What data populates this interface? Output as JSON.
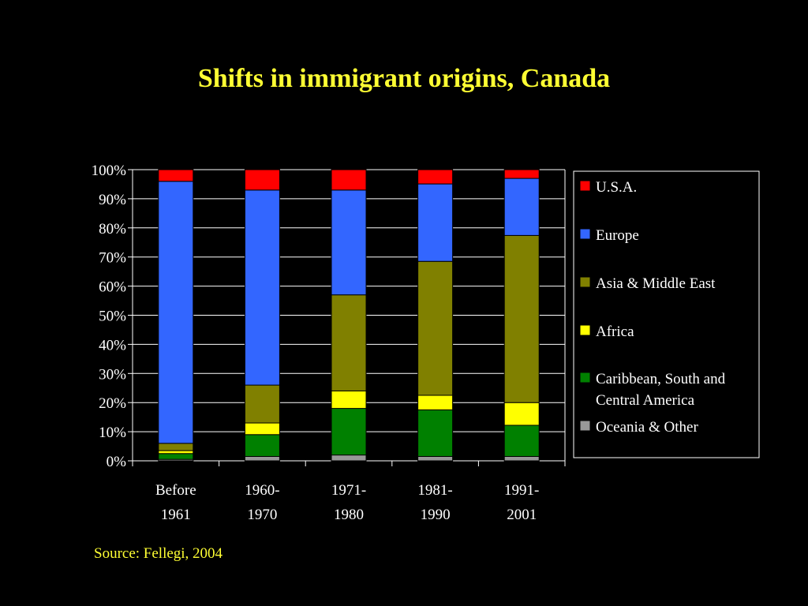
{
  "chart_data": {
    "type": "bar",
    "stacked": true,
    "title": "Shifts in immigrant origins, Canada",
    "source": "Source: Fellegi, 2004",
    "ylim": [
      0,
      100
    ],
    "yticks": [
      "0%",
      "10%",
      "20%",
      "30%",
      "40%",
      "50%",
      "60%",
      "70%",
      "80%",
      "90%",
      "100%"
    ],
    "grid": true,
    "legend_position": "right",
    "categories": [
      {
        "line1": "Before",
        "line2": "1961"
      },
      {
        "line1": "1960-",
        "line2": "1970"
      },
      {
        "line1": "1971-",
        "line2": "1980"
      },
      {
        "line1": "1981-",
        "line2": "1990"
      },
      {
        "line1": "1991-",
        "line2": "2001"
      }
    ],
    "series": [
      {
        "name": "Oceania & Other",
        "color": "#999999",
        "values": [
          0.5,
          1.5,
          2,
          1.5,
          1.5
        ]
      },
      {
        "name": "Caribbean, South and Central America",
        "name_lines": [
          "Caribbean, South and",
          "Central America"
        ],
        "color": "#008000",
        "values": [
          2,
          7.5,
          16,
          16,
          10.7
        ]
      },
      {
        "name": "Africa",
        "color": "#ffff00",
        "values": [
          1,
          4,
          6,
          5,
          7.8
        ]
      },
      {
        "name": "Asia & Middle East",
        "color": "#808000",
        "values": [
          2.5,
          13,
          33,
          46,
          57.4
        ]
      },
      {
        "name": "Europe",
        "color": "#3366ff",
        "values": [
          90,
          67,
          36,
          26.6,
          19.6
        ]
      },
      {
        "name": "U.S.A.",
        "color": "#ff0000",
        "values": [
          4,
          7,
          7,
          4.9,
          3
        ]
      }
    ],
    "legend_order": [
      "U.S.A.",
      "Europe",
      "Asia & Middle East",
      "Africa",
      "Caribbean, South and Central America",
      "Oceania & Other"
    ]
  }
}
